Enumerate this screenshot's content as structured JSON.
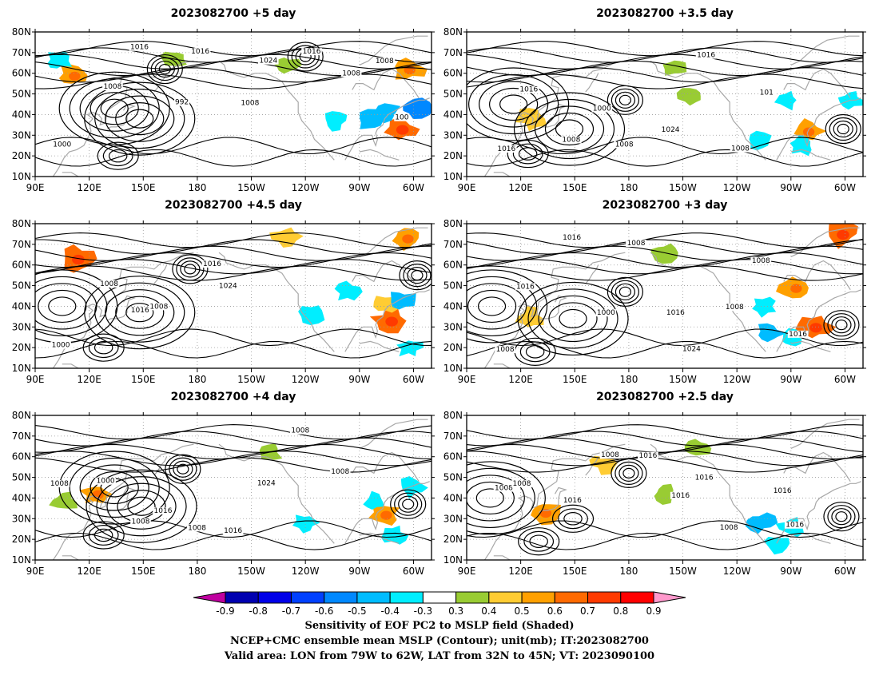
{
  "figure": {
    "caption_lines": [
      "Sensitivity of EOF PC2 to MSLP field (Shaded)",
      "NCEP+CMC ensemble mean MSLP (Contour); unit(mb); IT:2023082700",
      "Valid area: LON from 79W to 62W, LAT from 32N to 45N; VT: 2023090100"
    ]
  },
  "axes": {
    "lon_ticks": [
      "90E",
      "120E",
      "150E",
      "180",
      "150W",
      "120W",
      "90W",
      "60W"
    ],
    "lat_ticks": [
      "80N",
      "70N",
      "60N",
      "50N",
      "40N",
      "30N",
      "20N",
      "10N"
    ]
  },
  "panels": [
    {
      "title": "2023082700 +5 day",
      "lead": "+5",
      "contour_labels": [
        "1000",
        "1008",
        "1016",
        "992",
        "1016",
        "1008",
        "1024",
        "1016",
        "1008",
        "1008",
        "100"
      ],
      "highs": [
        {
          "lon": 148,
          "lat": 38
        },
        {
          "lon": 134,
          "lat": 43
        },
        {
          "lon": 136,
          "lat": 20
        }
      ],
      "lows": [
        {
          "lon": 162,
          "lat": 62
        },
        {
          "lon": 240,
          "lat": 68
        }
      ],
      "pos": [
        {
          "lon": 111,
          "lat": 59,
          "v": 0.5
        },
        {
          "lon": 293,
          "lat": 33,
          "v": 0.6
        },
        {
          "lon": 297,
          "lat": 62,
          "v": 0.5
        },
        {
          "lon": 229,
          "lat": 64,
          "v": 0.3
        },
        {
          "lon": 167,
          "lat": 67,
          "v": 0.3
        }
      ],
      "neg": [
        {
          "lon": 285,
          "lat": 41,
          "v": -0.4
        },
        {
          "lon": 276,
          "lat": 37,
          "v": -0.4
        },
        {
          "lon": 301,
          "lat": 43,
          "v": -0.5
        },
        {
          "lon": 103,
          "lat": 66,
          "v": -0.3
        },
        {
          "lon": 256,
          "lat": 37,
          "v": -0.3
        }
      ]
    },
    {
      "title": "2023082700 +3.5 day",
      "lead": "+3.5",
      "contour_labels": [
        "1016",
        "1016",
        "1008",
        "1000",
        "1008",
        "1024",
        "1016",
        "1008",
        "101"
      ],
      "highs": [
        {
          "lon": 147,
          "lat": 33
        },
        {
          "lon": 116,
          "lat": 45
        },
        {
          "lon": 124,
          "lat": 21
        }
      ],
      "lows": [
        {
          "lon": 178,
          "lat": 47
        },
        {
          "lon": 299,
          "lat": 33
        }
      ],
      "pos": [
        {
          "lon": 126,
          "lat": 38,
          "v": 0.4
        },
        {
          "lon": 206,
          "lat": 63,
          "v": 0.3
        },
        {
          "lon": 279,
          "lat": 32,
          "v": 0.5
        },
        {
          "lon": 215,
          "lat": 49,
          "v": 0.3
        }
      ],
      "neg": [
        {
          "lon": 267,
          "lat": 47,
          "v": -0.3
        },
        {
          "lon": 252,
          "lat": 27,
          "v": -0.3
        },
        {
          "lon": 276,
          "lat": 25,
          "v": -0.3
        },
        {
          "lon": 303,
          "lat": 47,
          "v": -0.3
        }
      ]
    },
    {
      "title": "2023082700 +4.5 day",
      "lead": "+4.5",
      "contour_labels": [
        "1000",
        "1008",
        "1016",
        "1008",
        "1016",
        "1024"
      ],
      "highs": [
        {
          "lon": 148,
          "lat": 37
        },
        {
          "lon": 105,
          "lat": 40
        },
        {
          "lon": 128,
          "lat": 20
        }
      ],
      "lows": [
        {
          "lon": 176,
          "lat": 58
        },
        {
          "lon": 302,
          "lat": 55
        }
      ],
      "pos": [
        {
          "lon": 287,
          "lat": 33,
          "v": 0.6
        },
        {
          "lon": 113,
          "lat": 63,
          "v": 0.6
        },
        {
          "lon": 229,
          "lat": 74,
          "v": 0.4
        },
        {
          "lon": 296,
          "lat": 73,
          "v": 0.5
        },
        {
          "lon": 285,
          "lat": 41,
          "v": 0.4
        }
      ],
      "neg": [
        {
          "lon": 293,
          "lat": 43,
          "v": -0.4
        },
        {
          "lon": 264,
          "lat": 47,
          "v": -0.3
        },
        {
          "lon": 244,
          "lat": 36,
          "v": -0.3
        },
        {
          "lon": 298,
          "lat": 20,
          "v": -0.3
        }
      ]
    },
    {
      "title": "2023082700 +3 day",
      "lead": "+3",
      "contour_labels": [
        "1008",
        "1016",
        "1016",
        "1000",
        "1008",
        "1016",
        "1024",
        "1008",
        "1008",
        "1016"
      ],
      "highs": [
        {
          "lon": 149,
          "lat": 34
        },
        {
          "lon": 104,
          "lat": 40
        },
        {
          "lon": 128,
          "lat": 18
        }
      ],
      "lows": [
        {
          "lon": 178,
          "lat": 47
        },
        {
          "lon": 298,
          "lat": 31
        }
      ],
      "pos": [
        {
          "lon": 125,
          "lat": 34,
          "v": 0.4
        },
        {
          "lon": 272,
          "lat": 49,
          "v": 0.5
        },
        {
          "lon": 283,
          "lat": 30,
          "v": 0.6
        },
        {
          "lon": 298,
          "lat": 75,
          "v": 0.6
        },
        {
          "lon": 200,
          "lat": 66,
          "v": 0.3
        }
      ],
      "neg": [
        {
          "lon": 258,
          "lat": 27,
          "v": -0.4
        },
        {
          "lon": 270,
          "lat": 24,
          "v": -0.3
        },
        {
          "lon": 255,
          "lat": 40,
          "v": -0.3
        }
      ]
    },
    {
      "title": "2023082700 +4 day",
      "lead": "+4",
      "contour_labels": [
        "1008",
        "1000",
        "1008",
        "1016",
        "1008",
        "1016",
        "1024",
        "1008",
        "1008"
      ],
      "highs": [
        {
          "lon": 149,
          "lat": 36
        },
        {
          "lon": 134,
          "lat": 45
        },
        {
          "lon": 128,
          "lat": 22
        }
      ],
      "lows": [
        {
          "lon": 172,
          "lat": 54
        },
        {
          "lon": 297,
          "lat": 37
        }
      ],
      "pos": [
        {
          "lon": 124,
          "lat": 42,
          "v": 0.5
        },
        {
          "lon": 284,
          "lat": 32,
          "v": 0.5
        },
        {
          "lon": 220,
          "lat": 62,
          "v": 0.3
        },
        {
          "lon": 106,
          "lat": 38,
          "v": 0.3
        }
      ],
      "neg": [
        {
          "lon": 240,
          "lat": 28,
          "v": -0.3
        },
        {
          "lon": 278,
          "lat": 38,
          "v": -0.3
        },
        {
          "lon": 299,
          "lat": 45,
          "v": -0.3
        },
        {
          "lon": 289,
          "lat": 22,
          "v": -0.3
        }
      ]
    },
    {
      "title": "2023082700 +2.5 day",
      "lead": "+2.5",
      "contour_labels": [
        "1008",
        "1008",
        "1016",
        "1008",
        "1016",
        "1016",
        "1016",
        "1008",
        "1016",
        "1016"
      ],
      "highs": [
        {
          "lon": 149,
          "lat": 30
        },
        {
          "lon": 103,
          "lat": 40
        },
        {
          "lon": 130,
          "lat": 19
        }
      ],
      "lows": [
        {
          "lon": 180,
          "lat": 52
        },
        {
          "lon": 298,
          "lat": 31
        }
      ],
      "pos": [
        {
          "lon": 133,
          "lat": 33,
          "v": 0.5
        },
        {
          "lon": 166,
          "lat": 57,
          "v": 0.4
        },
        {
          "lon": 200,
          "lat": 42,
          "v": 0.3
        },
        {
          "lon": 218,
          "lat": 64,
          "v": 0.3
        }
      ],
      "neg": [
        {
          "lon": 253,
          "lat": 28,
          "v": -0.4
        },
        {
          "lon": 270,
          "lat": 26,
          "v": -0.3
        },
        {
          "lon": 262,
          "lat": 18,
          "v": -0.3
        }
      ]
    }
  ],
  "colorbar": {
    "ticks": [
      "-0.9",
      "-0.8",
      "-0.7",
      "-0.6",
      "-0.5",
      "-0.4",
      "-0.3",
      "0.3",
      "0.4",
      "0.5",
      "0.6",
      "0.7",
      "0.8",
      "0.9"
    ],
    "colors": [
      "#c000a0",
      "#0000b0",
      "#0000e8",
      "#0040ff",
      "#0088ff",
      "#00bcff",
      "#00eeff",
      "#ffffff",
      "#99cc33",
      "#ffcc33",
      "#ffa000",
      "#ff6a00",
      "#ff3a00",
      "#ff0000",
      "#ff99cc"
    ]
  }
}
